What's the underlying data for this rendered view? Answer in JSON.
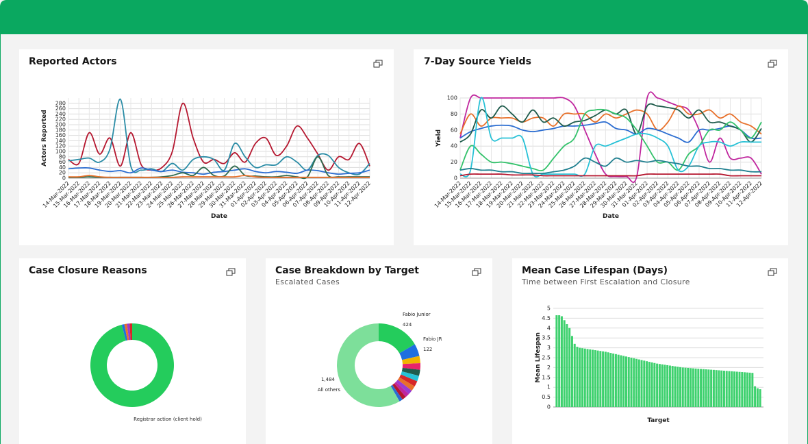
{
  "chart_data": [
    {
      "type": "line",
      "title": "Reported Actors",
      "xlabel": "Date",
      "ylabel": "Actors Reported",
      "x": [
        "14-Mar-2022",
        "15-Mar-2022",
        "16-Mar-2022",
        "17-Mar-2022",
        "18-Mar-2022",
        "19-Mar-2022",
        "20-Mar-2022",
        "21-Mar-2022",
        "22-Mar-2022",
        "23-Mar-2022",
        "24-Mar-2022",
        "25-Mar-2022",
        "26-Mar-2022",
        "27-Mar-2022",
        "28-Mar-2022",
        "29-Mar-2022",
        "30-Mar-2022",
        "31-Mar-2022",
        "01-Apr-2022",
        "02-Apr-2022",
        "03-Apr-2022",
        "04-Apr-2022",
        "05-Apr-2022",
        "06-Apr-2022",
        "07-Apr-2022",
        "08-Apr-2022",
        "09-Apr-2022",
        "10-Apr-2022",
        "11-Apr-2022",
        "12-Apr-2022"
      ],
      "ylim": [
        0,
        300
      ],
      "yticks": [
        0,
        20,
        40,
        60,
        80,
        100,
        120,
        140,
        160,
        180,
        200,
        220,
        240,
        260,
        280
      ],
      "grid": true,
      "series": [
        {
          "color": "#b5172f",
          "values": [
            70,
            55,
            170,
            90,
            150,
            45,
            170,
            50,
            30,
            40,
            100,
            280,
            150,
            60,
            70,
            55,
            95,
            60,
            130,
            150,
            85,
            120,
            195,
            150,
            90,
            30,
            80,
            70,
            130,
            45
          ]
        },
        {
          "color": "#2a8ca6",
          "values": [
            65,
            70,
            75,
            60,
            110,
            295,
            45,
            30,
            35,
            25,
            55,
            30,
            70,
            80,
            70,
            30,
            130,
            80,
            40,
            50,
            50,
            80,
            60,
            30,
            85,
            85,
            40,
            20,
            15,
            55
          ]
        },
        {
          "color": "#2b6dd1",
          "values": [
            35,
            38,
            38,
            30,
            25,
            28,
            20,
            38,
            30,
            25,
            30,
            22,
            20,
            15,
            22,
            25,
            30,
            35,
            25,
            20,
            25,
            22,
            18,
            30,
            28,
            20,
            15,
            18,
            20,
            30
          ]
        },
        {
          "color": "#2f6b4f",
          "values": [
            3,
            3,
            5,
            3,
            3,
            3,
            3,
            3,
            3,
            5,
            10,
            20,
            10,
            40,
            10,
            8,
            45,
            10,
            8,
            5,
            5,
            10,
            5,
            5,
            80,
            10,
            5,
            5,
            5,
            5
          ]
        },
        {
          "color": "#e8702a",
          "values": [
            5,
            5,
            10,
            5,
            3,
            3,
            3,
            3,
            3,
            3,
            3,
            5,
            5,
            5,
            5,
            5,
            5,
            10,
            5,
            3,
            3,
            3,
            3,
            3,
            3,
            3,
            3,
            3,
            3,
            3
          ]
        }
      ]
    },
    {
      "type": "line",
      "title": "7-Day Source Yields",
      "xlabel": "Date",
      "ylabel": "Yield",
      "x": [
        "14-Mar-2022",
        "15-Mar-2022",
        "16-Mar-2022",
        "17-Mar-2022",
        "18-Mar-2022",
        "19-Mar-2022",
        "20-Mar-2022",
        "21-Mar-2022",
        "22-Mar-2022",
        "23-Mar-2022",
        "24-Mar-2022",
        "25-Mar-2022",
        "26-Mar-2022",
        "27-Mar-2022",
        "28-Mar-2022",
        "29-Mar-2022",
        "30-Mar-2022",
        "31-Mar-2022",
        "01-Apr-2022",
        "02-Apr-2022",
        "03-Apr-2022",
        "04-Apr-2022",
        "05-Apr-2022",
        "06-Apr-2022",
        "07-Apr-2022",
        "08-Apr-2022",
        "09-Apr-2022",
        "10-Apr-2022",
        "11-Apr-2022",
        "12-Apr-2022"
      ],
      "ylim": [
        0,
        100
      ],
      "yticks": [
        0,
        20,
        40,
        60,
        80,
        100
      ],
      "grid": true,
      "series": [
        {
          "color": "#c0269e",
          "values": [
            50,
            100,
            100,
            100,
            100,
            100,
            100,
            100,
            100,
            100,
            100,
            90,
            60,
            30,
            5,
            2,
            2,
            2,
            100,
            100,
            95,
            90,
            85,
            60,
            20,
            50,
            25,
            25,
            25,
            5
          ]
        },
        {
          "color": "#e8702a",
          "values": [
            55,
            80,
            65,
            75,
            75,
            75,
            70,
            75,
            75,
            65,
            80,
            80,
            80,
            70,
            80,
            75,
            80,
            85,
            80,
            60,
            70,
            90,
            80,
            80,
            85,
            75,
            80,
            70,
            65,
            55
          ]
        },
        {
          "color": "#2b6dd1",
          "values": [
            50,
            58,
            62,
            65,
            66,
            65,
            60,
            58,
            60,
            62,
            65,
            65,
            66,
            68,
            70,
            62,
            60,
            55,
            62,
            60,
            55,
            50,
            45,
            60,
            60,
            62,
            65,
            60,
            50,
            50
          ]
        },
        {
          "color": "#1f5c4c",
          "values": [
            45,
            55,
            85,
            75,
            90,
            80,
            70,
            85,
            70,
            75,
            65,
            70,
            72,
            78,
            85,
            80,
            85,
            55,
            90,
            90,
            88,
            85,
            75,
            85,
            70,
            70,
            65,
            60,
            45,
            62
          ]
        },
        {
          "color": "#33c26b",
          "values": [
            10,
            40,
            30,
            20,
            20,
            18,
            15,
            12,
            10,
            25,
            40,
            50,
            80,
            85,
            85,
            80,
            75,
            60,
            40,
            20,
            20,
            10,
            30,
            40,
            60,
            60,
            70,
            60,
            50,
            70
          ]
        },
        {
          "color": "#27c1d6",
          "values": [
            5,
            10,
            100,
            50,
            50,
            50,
            50,
            5,
            5,
            5,
            5,
            5,
            5,
            40,
            40,
            45,
            50,
            55,
            55,
            50,
            40,
            10,
            15,
            40,
            45,
            45,
            40,
            45,
            45,
            45
          ]
        },
        {
          "color": "#1f7f8f",
          "values": [
            10,
            12,
            10,
            10,
            8,
            8,
            6,
            6,
            6,
            8,
            10,
            15,
            25,
            20,
            15,
            25,
            20,
            22,
            20,
            22,
            20,
            18,
            15,
            15,
            12,
            12,
            10,
            10,
            8,
            8
          ]
        },
        {
          "color": "#b5172f",
          "values": [
            3,
            5,
            5,
            5,
            5,
            4,
            4,
            4,
            3,
            3,
            3,
            3,
            3,
            3,
            3,
            3,
            3,
            3,
            5,
            5,
            5,
            5,
            5,
            5,
            5,
            5,
            3,
            3,
            3,
            3
          ]
        }
      ]
    },
    {
      "type": "pie",
      "title": "Case Closure Reasons",
      "categories": [
        "Registrar action (client hold)",
        null,
        null,
        null,
        null
      ],
      "values": [
        96,
        1,
        1,
        1,
        1
      ],
      "colors": [
        "#24cc5c",
        "#1f6fe0",
        "#e8702a",
        "#9b3bd1",
        "#d62728"
      ]
    },
    {
      "type": "pie",
      "title": "Case Breakdown by Target",
      "subtitle": "Escalated Cases",
      "categories": [
        "Fabio Junior",
        "Fabio JR",
        null,
        null,
        null,
        null,
        null,
        null,
        null,
        null,
        null,
        null,
        "All others"
      ],
      "values": [
        424,
        122,
        70,
        65,
        60,
        55,
        55,
        50,
        45,
        40,
        40,
        34,
        1484
      ],
      "value_labels": [
        null,
        null,
        null,
        null,
        null,
        null,
        null,
        null,
        null,
        null,
        null,
        null,
        "1,484"
      ],
      "colors": [
        "#24cc5c",
        "#1f6fe0",
        "#f0b400",
        "#e8246a",
        "#1f5c4c",
        "#27c1d6",
        "#d62728",
        "#e8702a",
        "#9b3bd1",
        "#c0269e",
        "#b5172f",
        "#2b6dd1",
        "#7ddf9a"
      ]
    },
    {
      "type": "bar",
      "title": "Mean Case Lifespan (Days)",
      "subtitle": "Time between First Escalation and Closure",
      "xlabel": "Target",
      "ylabel": "Mean Lifespan",
      "color": "#3ed16e",
      "grid": true,
      "ylim": [
        0,
        5
      ],
      "yticks": [
        0,
        0.5,
        1,
        1.5,
        2,
        2.5,
        3,
        3.5,
        4,
        4.5,
        5
      ],
      "categories": [
        null,
        null,
        null,
        null,
        null,
        null,
        null,
        null,
        null,
        null,
        null,
        null,
        null,
        null,
        null,
        null,
        null,
        null,
        null,
        null,
        null,
        null,
        null,
        null,
        null,
        null,
        null,
        null,
        null,
        null,
        null,
        null,
        null,
        null,
        null,
        null,
        null,
        null,
        null,
        null,
        null,
        null,
        null,
        null,
        null,
        null,
        null,
        null,
        null,
        null,
        null,
        null,
        null,
        null,
        null,
        null,
        null,
        null,
        null,
        null,
        null,
        null,
        null,
        null,
        null,
        null,
        null,
        null,
        null,
        null,
        null,
        null,
        null,
        null,
        null,
        null,
        null,
        null,
        null,
        null
      ],
      "values": [
        4.65,
        4.65,
        4.6,
        4.4,
        4.2,
        4.0,
        3.6,
        3.2,
        3.05,
        3.0,
        2.98,
        2.96,
        2.94,
        2.92,
        2.9,
        2.88,
        2.86,
        2.84,
        2.82,
        2.8,
        2.77,
        2.74,
        2.71,
        2.68,
        2.65,
        2.62,
        2.59,
        2.56,
        2.53,
        2.5,
        2.47,
        2.44,
        2.41,
        2.38,
        2.35,
        2.32,
        2.29,
        2.26,
        2.23,
        2.2,
        2.18,
        2.16,
        2.14,
        2.12,
        2.1,
        2.08,
        2.06,
        2.04,
        2.02,
        2.0,
        1.99,
        1.98,
        1.97,
        1.96,
        1.95,
        1.94,
        1.93,
        1.92,
        1.91,
        1.9,
        1.89,
        1.88,
        1.87,
        1.86,
        1.85,
        1.84,
        1.83,
        1.82,
        1.81,
        1.8,
        1.79,
        1.78,
        1.77,
        1.76,
        1.75,
        1.74,
        1.73,
        1.05,
        0.95,
        0.9
      ]
    }
  ]
}
